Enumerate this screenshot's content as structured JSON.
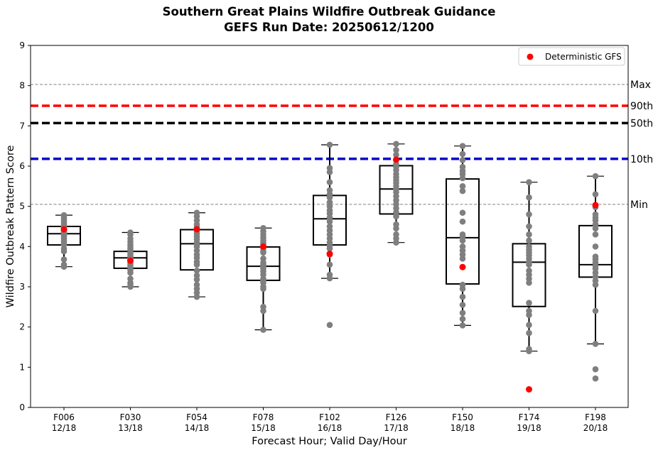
{
  "chart_data": {
    "type": "box",
    "title": "Southern Great Plains Wildfire Outbreak Guidance",
    "subtitle": "GEFS Run Date: 20250612/1200",
    "xlabel": "Forecast Hour; Valid Day/Hour",
    "ylabel": "Wildfire Outbreak Pattern Score",
    "ylim": [
      0,
      9
    ],
    "yticks": [
      0,
      1,
      2,
      3,
      4,
      5,
      6,
      7,
      8,
      9
    ],
    "grid": false,
    "legend": {
      "placement": "top-right",
      "entries": [
        "Deterministic GFS"
      ]
    },
    "colors": {
      "box": "#000000",
      "members": "#7f7f7f",
      "deterministic": "#ff0000",
      "p90": "#ff0000",
      "p50": "#000000",
      "p10": "#0000cc",
      "minmax": "#808080"
    },
    "reference_lines": [
      {
        "label": "Max",
        "value": 8.03,
        "color": "#808080",
        "style": "dashed-thin"
      },
      {
        "label": "90th",
        "value": 7.5,
        "color": "#ff0000",
        "style": "dashed-thick"
      },
      {
        "label": "50th",
        "value": 7.07,
        "color": "#000000",
        "style": "dashed-thick"
      },
      {
        "label": "10th",
        "value": 6.18,
        "color": "#0000cc",
        "style": "dashed-thick"
      },
      {
        "label": "Min",
        "value": 5.05,
        "color": "#808080",
        "style": "dashed-thin"
      }
    ],
    "categories": [
      {
        "fhour": "F006",
        "valid": "12/18",
        "whisker_low": 3.5,
        "q1": 4.04,
        "median": 4.32,
        "q3": 4.5,
        "whisker_high": 4.78,
        "deterministic": 4.43,
        "members": [
          3.5,
          3.55,
          3.68,
          3.88,
          3.95,
          4.05,
          4.1,
          4.15,
          4.2,
          4.25,
          4.28,
          4.3,
          4.32,
          4.35,
          4.38,
          4.4,
          4.42,
          4.45,
          4.48,
          4.5,
          4.55,
          4.6,
          4.65,
          4.7,
          4.75,
          4.78
        ]
      },
      {
        "fhour": "F030",
        "valid": "13/18",
        "whisker_low": 3.0,
        "q1": 3.46,
        "median": 3.72,
        "q3": 3.88,
        "whisker_high": 4.35,
        "deterministic": 3.65,
        "members": [
          3.0,
          3.05,
          3.1,
          3.2,
          3.35,
          3.42,
          3.48,
          3.52,
          3.56,
          3.6,
          3.64,
          3.68,
          3.72,
          3.75,
          3.78,
          3.82,
          3.86,
          3.9,
          3.95,
          4.0,
          4.05,
          4.12,
          4.2,
          4.3,
          4.35
        ]
      },
      {
        "fhour": "F054",
        "valid": "14/18",
        "whisker_low": 2.75,
        "q1": 3.42,
        "median": 4.07,
        "q3": 4.42,
        "whisker_high": 4.84,
        "deterministic": 4.43,
        "members": [
          2.75,
          2.85,
          2.95,
          3.05,
          3.18,
          3.28,
          3.4,
          3.55,
          3.62,
          3.72,
          3.8,
          3.9,
          4.0,
          4.05,
          4.1,
          4.18,
          4.25,
          4.32,
          4.38,
          4.42,
          4.48,
          4.55,
          4.65,
          4.75,
          4.84
        ]
      },
      {
        "fhour": "F078",
        "valid": "15/18",
        "whisker_low": 1.93,
        "q1": 3.16,
        "median": 3.51,
        "q3": 3.99,
        "whisker_high": 4.46,
        "deterministic": 4.0,
        "members": [
          1.93,
          2.4,
          2.5,
          2.95,
          3.0,
          3.1,
          3.15,
          3.2,
          3.3,
          3.38,
          3.45,
          3.5,
          3.55,
          3.6,
          3.7,
          3.85,
          3.88,
          3.95,
          4.05,
          4.1,
          4.15,
          4.22,
          4.3,
          4.38,
          4.46
        ]
      },
      {
        "fhour": "F102",
        "valid": "16/18",
        "whisker_low": 3.21,
        "q1": 4.04,
        "median": 4.69,
        "q3": 5.27,
        "whisker_high": 6.53,
        "deterministic": 3.82,
        "members": [
          2.05,
          3.21,
          3.3,
          3.55,
          3.8,
          3.95,
          4.02,
          4.1,
          4.2,
          4.3,
          4.4,
          4.5,
          4.62,
          4.72,
          4.82,
          4.9,
          5.0,
          5.1,
          5.22,
          5.3,
          5.4,
          5.6,
          5.85,
          5.95,
          6.53
        ]
      },
      {
        "fhour": "F126",
        "valid": "17/18",
        "whisker_low": 4.1,
        "q1": 4.81,
        "median": 5.43,
        "q3": 6.01,
        "whisker_high": 6.55,
        "deterministic": 6.16,
        "members": [
          4.1,
          4.2,
          4.3,
          4.45,
          4.55,
          4.75,
          4.85,
          4.95,
          5.05,
          5.15,
          5.25,
          5.35,
          5.42,
          5.5,
          5.58,
          5.65,
          5.72,
          5.8,
          5.9,
          5.98,
          6.05,
          6.15,
          6.28,
          6.4,
          6.55
        ]
      },
      {
        "fhour": "F150",
        "valid": "18/18",
        "whisker_low": 2.04,
        "q1": 3.07,
        "median": 4.22,
        "q3": 5.68,
        "whisker_high": 6.5,
        "deterministic": 3.49,
        "members": [
          2.04,
          2.2,
          2.35,
          2.55,
          2.75,
          2.95,
          3.05,
          3.7,
          3.8,
          3.9,
          4.0,
          4.15,
          4.25,
          4.3,
          4.62,
          4.84,
          5.38,
          5.5,
          5.7,
          5.8,
          5.88,
          5.98,
          6.15,
          6.3,
          6.5
        ]
      },
      {
        "fhour": "F174",
        "valid": "19/18",
        "whisker_low": 1.4,
        "q1": 2.51,
        "median": 3.61,
        "q3": 4.07,
        "whisker_high": 5.6,
        "deterministic": 0.45,
        "members": [
          1.4,
          1.45,
          1.85,
          2.05,
          2.3,
          2.4,
          2.6,
          3.1,
          3.2,
          3.3,
          3.4,
          3.55,
          3.62,
          3.7,
          3.78,
          3.85,
          3.92,
          4.0,
          4.15,
          4.3,
          4.5,
          4.8,
          5.22,
          5.6
        ]
      },
      {
        "fhour": "F198",
        "valid": "20/18",
        "whisker_low": 1.58,
        "q1": 3.24,
        "median": 3.55,
        "q3": 4.52,
        "whisker_high": 5.75,
        "deterministic": 5.03,
        "members": [
          0.72,
          0.95,
          1.58,
          2.4,
          3.05,
          3.15,
          3.25,
          3.35,
          3.45,
          3.52,
          3.6,
          3.68,
          3.75,
          4.0,
          4.3,
          4.45,
          4.55,
          4.65,
          4.72,
          4.8,
          4.98,
          5.3,
          5.75
        ]
      }
    ]
  }
}
